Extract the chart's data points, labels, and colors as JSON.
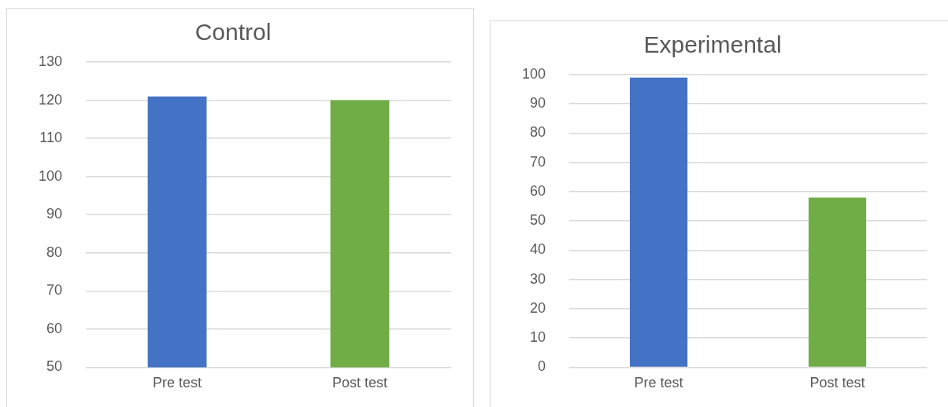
{
  "chart_data": [
    {
      "type": "bar",
      "title": "Control",
      "categories": [
        "Pre test",
        "Post test"
      ],
      "values": [
        121,
        120
      ],
      "colors": [
        "#4472c4",
        "#70ad47"
      ],
      "ylim": [
        50,
        130
      ],
      "yticks": [
        50,
        60,
        70,
        80,
        90,
        100,
        110,
        120,
        130
      ],
      "grid": "y"
    },
    {
      "type": "bar",
      "title": "Experimental",
      "categories": [
        "Pre test",
        "Post test"
      ],
      "values": [
        99,
        58
      ],
      "colors": [
        "#4472c4",
        "#70ad47"
      ],
      "ylim": [
        0,
        100
      ],
      "yticks": [
        0,
        10,
        20,
        30,
        40,
        50,
        60,
        70,
        80,
        90,
        100
      ],
      "grid": "y"
    }
  ]
}
